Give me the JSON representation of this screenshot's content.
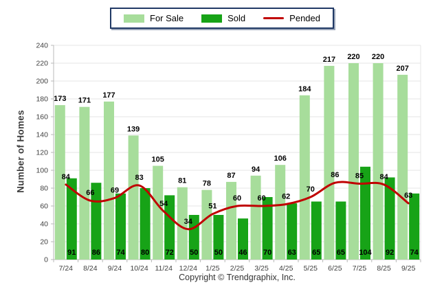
{
  "legend": {
    "items": [
      {
        "label": "For Sale",
        "color": "#A7DD9B",
        "type": "swatch"
      },
      {
        "label": "Sold",
        "color": "#17A317",
        "type": "swatch"
      },
      {
        "label": "Pended",
        "color": "#C00000",
        "type": "line"
      }
    ]
  },
  "footer": "Copyright © Trendgraphix, Inc.",
  "chart_data": {
    "type": "bar+line",
    "title": "",
    "xlabel": "",
    "ylabel": "Number of Homes",
    "ylim": [
      0,
      240
    ],
    "ytick_step": 20,
    "grid": true,
    "legend_position": "top",
    "categories": [
      "7/24",
      "8/24",
      "9/24",
      "10/24",
      "11/24",
      "12/24",
      "1/25",
      "2/25",
      "3/25",
      "4/25",
      "5/25",
      "6/25",
      "7/25",
      "8/25",
      "9/25"
    ],
    "series": [
      {
        "name": "For Sale",
        "type": "bar",
        "color": "#A7DD9B",
        "values": [
          173,
          171,
          177,
          139,
          105,
          81,
          78,
          87,
          94,
          106,
          184,
          217,
          220,
          220,
          207
        ]
      },
      {
        "name": "Sold",
        "type": "bar",
        "color": "#17A317",
        "values": [
          91,
          86,
          74,
          80,
          72,
          50,
          50,
          46,
          70,
          63,
          65,
          65,
          104,
          92,
          74
        ]
      },
      {
        "name": "Pended",
        "type": "line",
        "color": "#C00000",
        "values": [
          84,
          66,
          69,
          83,
          54,
          34,
          51,
          60,
          60,
          62,
          70,
          86,
          85,
          84,
          63
        ]
      }
    ],
    "colors": {
      "grid": "#E6E6E6",
      "axis": "#B9B9B9",
      "tick_text": "#3F3F3F",
      "value_text": "#000000"
    }
  }
}
